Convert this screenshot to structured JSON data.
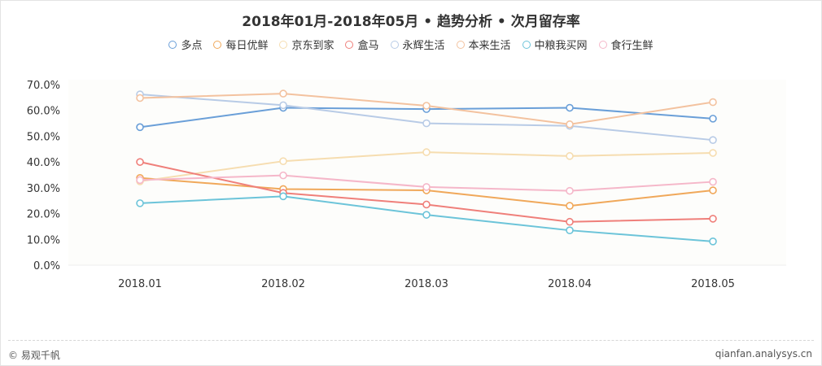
{
  "chart_data": {
    "type": "line",
    "title": "2018年01月-2018年05月 • 趋势分析 • 次月留存率",
    "categories": [
      "2018.01",
      "2018.02",
      "2018.03",
      "2018.04",
      "2018.05"
    ],
    "ylim": [
      0,
      70
    ],
    "yticks": [
      "0.0%",
      "10.0%",
      "20.0%",
      "30.0%",
      "40.0%",
      "50.0%",
      "60.0%",
      "70.0%"
    ],
    "legend_position": "top-center",
    "grid": false,
    "series": [
      {
        "name": "多点",
        "color": "#6a9fd8",
        "values": [
          53.5,
          61.0,
          60.5,
          61.0,
          56.8
        ]
      },
      {
        "name": "每日优鲜",
        "color": "#f0a85a",
        "values": [
          33.8,
          29.5,
          29.0,
          23.0,
          29.0
        ]
      },
      {
        "name": "京东到家",
        "color": "#f6ddb0",
        "values": [
          32.5,
          40.3,
          43.8,
          42.3,
          43.5
        ]
      },
      {
        "name": "盒马",
        "color": "#ef7f7a",
        "values": [
          40.0,
          28.0,
          23.5,
          16.8,
          18.0
        ]
      },
      {
        "name": "永辉生活",
        "color": "#b8cbe6",
        "values": [
          66.2,
          62.0,
          55.0,
          54.0,
          48.5
        ]
      },
      {
        "name": "本来生活",
        "color": "#f3c29f",
        "values": [
          64.8,
          66.5,
          61.8,
          54.6,
          63.2
        ]
      },
      {
        "name": "中粮我买网",
        "color": "#6cc4d9",
        "values": [
          24.0,
          26.7,
          19.5,
          13.5,
          9.2
        ]
      },
      {
        "name": "食行生鲜",
        "color": "#f5b7c9",
        "values": [
          33.0,
          34.8,
          30.3,
          28.8,
          32.3
        ]
      }
    ]
  },
  "footer": {
    "brand": "© 易观千帆",
    "url": "qianfan.analysys.cn"
  }
}
